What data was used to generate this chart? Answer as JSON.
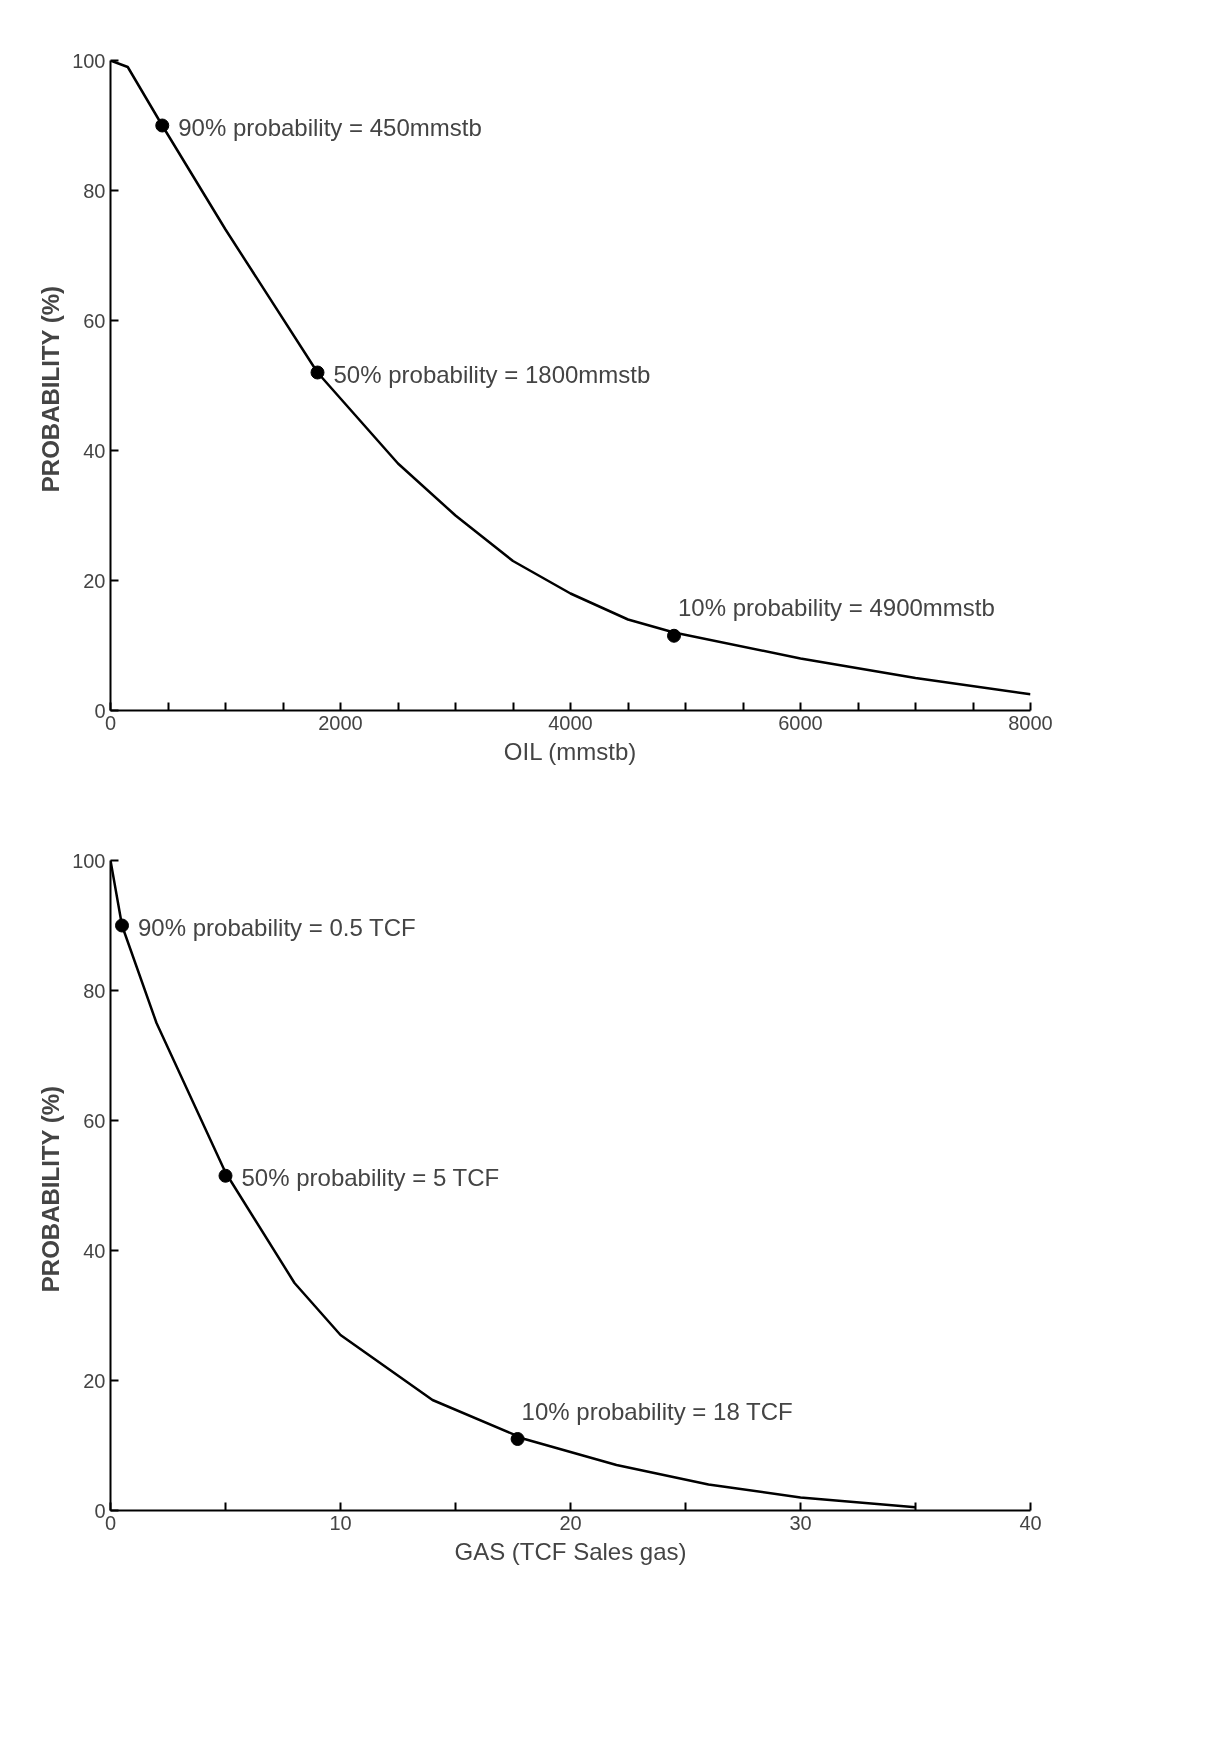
{
  "chart_data": [
    {
      "type": "line",
      "xlabel": "OIL (mmstb)",
      "ylabel": "PROBABILITY  (%)",
      "xlim": [
        0,
        8000
      ],
      "ylim": [
        0,
        100
      ],
      "xticks": [
        0,
        {
          "value": 500,
          "label": null
        },
        {
          "value": 1000,
          "label": null
        },
        {
          "value": 1500,
          "label": null
        },
        2000,
        {
          "value": 2500,
          "label": null
        },
        {
          "value": 3000,
          "label": null
        },
        {
          "value": 3500,
          "label": null
        },
        4000,
        {
          "value": 4500,
          "label": null
        },
        {
          "value": 5000,
          "label": null
        },
        {
          "value": 5500,
          "label": null
        },
        6000,
        {
          "value": 6500,
          "label": null
        },
        {
          "value": 7000,
          "label": null
        },
        {
          "value": 7500,
          "label": null
        },
        8000
      ],
      "yticks": [
        0,
        20,
        40,
        60,
        80,
        100
      ],
      "series": [
        {
          "color": "#000000",
          "x": [
            0,
            150,
            450,
            1000,
            1800,
            2500,
            3000,
            3500,
            4000,
            4500,
            4900,
            6000,
            7000,
            8000
          ],
          "values": [
            100,
            99,
            90,
            74,
            52,
            38,
            30,
            23,
            18,
            14,
            12,
            8,
            5,
            2.5
          ]
        },
        {
          "type": "scatter",
          "color": "#000000",
          "x": [
            450,
            1800,
            4900
          ],
          "values": [
            90,
            52,
            11.5
          ]
        }
      ],
      "annotations": [
        {
          "text": "90% probability = 450mmstb",
          "x": 450,
          "y": 90
        },
        {
          "text": "50% probability = 1800mmstb",
          "x": 1800,
          "y": 52
        },
        {
          "text": "10% probability = 4900mmstb",
          "x": 4900,
          "y": 11.5
        }
      ]
    },
    {
      "type": "line",
      "xlabel": "GAS (TCF Sales gas)",
      "ylabel": "PROBABILITY  (%)",
      "xlim": [
        0,
        40
      ],
      "ylim": [
        0,
        100
      ],
      "xticks": [
        0,
        {
          "value": 5,
          "label": null
        },
        10,
        {
          "value": 15,
          "label": null
        },
        20,
        {
          "value": 25,
          "label": null
        },
        30,
        {
          "value": 35,
          "label": null
        },
        40
      ],
      "yticks": [
        0,
        20,
        40,
        60,
        80,
        100
      ],
      "series": [
        {
          "color": "#000000",
          "x": [
            0,
            0.5,
            2,
            5,
            8,
            10,
            14,
            18,
            22,
            26,
            30,
            35
          ],
          "values": [
            100,
            90,
            75,
            52,
            35,
            27,
            17,
            11,
            7,
            4,
            2,
            0.5
          ]
        },
        {
          "type": "scatter",
          "color": "#000000",
          "x": [
            0.5,
            5,
            17.7
          ],
          "values": [
            90,
            51.5,
            11
          ]
        }
      ],
      "annotations": [
        {
          "text": "90% probability = 0.5 TCF",
          "x": 0.5,
          "y": 90
        },
        {
          "text": "50% probability = 5 TCF",
          "x": 5,
          "y": 51.5
        },
        {
          "text": "10% probability = 18 TCF",
          "x": 17.7,
          "y": 11
        }
      ]
    }
  ]
}
